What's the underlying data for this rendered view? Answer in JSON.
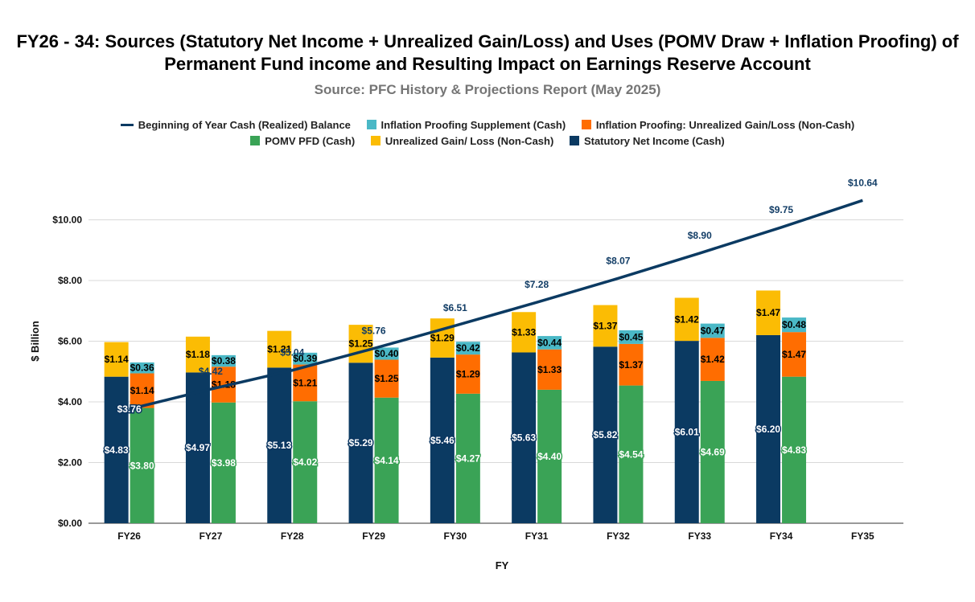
{
  "chart_data": {
    "type": "bar",
    "title": "FY26 - 34: Sources (Statutory Net Income + Unrealized Gain/Loss) and Uses (POMV Draw + Inflation Proofing) of Permanent Fund income and Resulting Impact on Earnings Reserve Account",
    "subtitle": "Source: PFC History & Projections Report (May 2025)",
    "xlabel": "FY",
    "ylabel": "$ Billion",
    "ylim": [
      0,
      12
    ],
    "yticks": [
      "$0.00",
      "$2.00",
      "$4.00",
      "$6.00",
      "$8.00",
      "$10.00"
    ],
    "ytick_values": [
      0,
      2,
      4,
      6,
      8,
      10
    ],
    "grid": true,
    "legend_position": "top",
    "categories": [
      "FY26",
      "FY27",
      "FY28",
      "FY29",
      "FY30",
      "FY31",
      "FY32",
      "FY33",
      "FY34",
      "FY35"
    ],
    "series": [
      {
        "name": "Beginning of Year Cash (Realized) Balance",
        "kind": "line",
        "color": "#0b3a62",
        "values": [
          3.76,
          4.42,
          5.04,
          5.76,
          6.51,
          7.28,
          8.07,
          8.9,
          9.75,
          10.64
        ],
        "labels": [
          "$3.76",
          "$4.42",
          "$5.04",
          "$5.76",
          "$6.51",
          "$7.28",
          "$8.07",
          "$8.90",
          "$9.75",
          "$10.64"
        ]
      },
      {
        "name": "Inflation Proofing Supplement (Cash)",
        "kind": "bar",
        "stack": "uses",
        "color": "#4ab8c6",
        "values": [
          0.36,
          0.38,
          0.39,
          0.4,
          0.42,
          0.44,
          0.45,
          0.47,
          0.48,
          null
        ],
        "labels": [
          "$0.36",
          "$0.38",
          "$0.39",
          "$0.40",
          "$0.42",
          "$0.44",
          "$0.45",
          "$0.47",
          "$0.48",
          ""
        ]
      },
      {
        "name": "Inflation Proofing: Unrealized Gain/Loss (Non-Cash)",
        "kind": "bar",
        "stack": "uses",
        "color": "#ff6d01",
        "values": [
          1.14,
          1.18,
          1.21,
          1.25,
          1.29,
          1.33,
          1.37,
          1.42,
          1.47,
          null
        ],
        "labels": [
          "$1.14",
          "$1.18",
          "$1.21",
          "$1.25",
          "$1.29",
          "$1.33",
          "$1.37",
          "$1.42",
          "$1.47",
          ""
        ]
      },
      {
        "name": "POMV PFD (Cash)",
        "kind": "bar",
        "stack": "uses",
        "color": "#3aa356",
        "values": [
          3.8,
          3.98,
          4.02,
          4.14,
          4.27,
          4.4,
          4.54,
          4.69,
          4.83,
          null
        ],
        "labels": [
          "$3.80",
          "$3.98",
          "$4.02",
          "$4.14",
          "$4.27",
          "$4.40",
          "$4.54",
          "$4.69",
          "$4.83",
          ""
        ]
      },
      {
        "name": "Unrealized Gain/ Loss (Non-Cash)",
        "kind": "bar",
        "stack": "sources",
        "color": "#fbbc04",
        "values": [
          1.14,
          1.18,
          1.21,
          1.25,
          1.29,
          1.33,
          1.37,
          1.42,
          1.47,
          null
        ],
        "labels": [
          "$1.14",
          "$1.18",
          "$1.21",
          "$1.25",
          "$1.29",
          "$1.33",
          "$1.37",
          "$1.42",
          "$1.47",
          ""
        ]
      },
      {
        "name": "Statutory Net Income (Cash)",
        "kind": "bar",
        "stack": "sources",
        "color": "#0b3a62",
        "values": [
          4.83,
          4.97,
          5.13,
          5.29,
          5.46,
          5.63,
          5.82,
          6.01,
          6.2,
          null
        ],
        "labels": [
          "$4.83",
          "$4.97",
          "$5.13",
          "$5.29",
          "$5.46",
          "$5.63",
          "$5.82",
          "$6.01",
          "$6.20",
          ""
        ]
      }
    ]
  },
  "legend": {
    "row1": [
      "Beginning of Year Cash (Realized) Balance",
      "Inflation Proofing Supplement (Cash)",
      "Inflation Proofing: Unrealized Gain/Loss (Non-Cash)"
    ],
    "row2": [
      "POMV PFD (Cash)",
      "Unrealized Gain/ Loss (Non-Cash)",
      "Statutory Net Income (Cash)"
    ]
  }
}
